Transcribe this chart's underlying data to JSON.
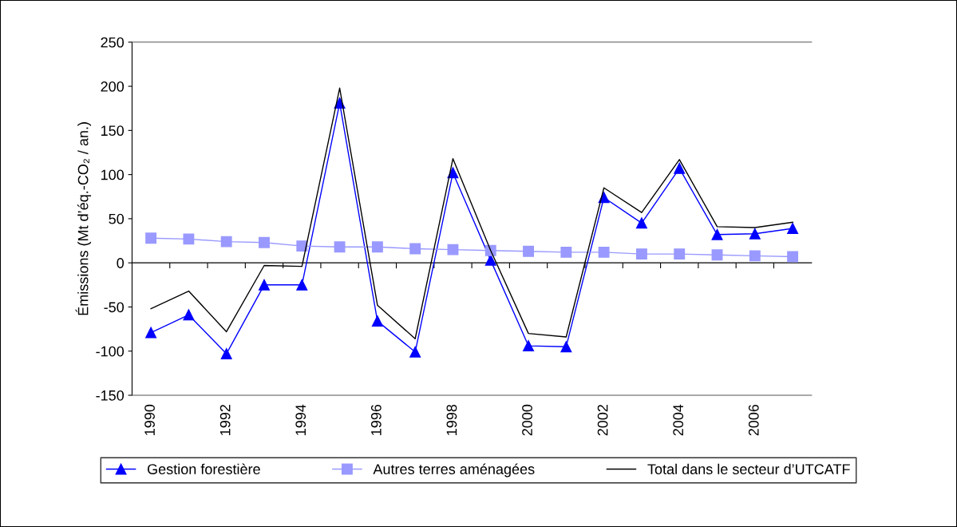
{
  "chart_data": {
    "type": "line",
    "ylabel": "Émissions (Mt d’éq.-CO₂ / an.)",
    "categories": [
      "1990",
      null,
      "1992",
      null,
      "1994",
      null,
      "1996",
      null,
      "1998",
      null,
      "2000",
      null,
      "2002",
      null,
      "2004",
      null,
      "2006",
      null
    ],
    "series": [
      {
        "name": "Gestion forestière",
        "color": "#0000ff",
        "marker": "triangle",
        "values": [
          -79,
          -59,
          -103,
          -25,
          -25,
          181,
          -66,
          -101,
          102,
          3,
          -94,
          -95,
          74,
          45,
          107,
          32,
          33,
          39
        ]
      },
      {
        "name": "Autres terres aménagées",
        "color": "#9999ff",
        "marker": "square",
        "values": [
          28,
          27,
          24,
          23,
          19,
          18,
          18,
          16,
          15,
          14,
          13,
          12,
          12,
          10,
          10,
          9,
          8,
          7
        ]
      },
      {
        "name": "Total dans le secteur d’UTCATF",
        "color": "#000000",
        "marker": "none",
        "values": [
          -52,
          -32,
          -78,
          -3,
          -4,
          198,
          -48,
          -86,
          118,
          14,
          -80,
          -84,
          85,
          57,
          117,
          41,
          40,
          46
        ]
      }
    ],
    "ylim": [
      -150,
      250
    ],
    "yticks": [
      -150,
      -100,
      -50,
      0,
      50,
      100,
      150,
      200,
      250
    ],
    "legend": "bottom"
  }
}
